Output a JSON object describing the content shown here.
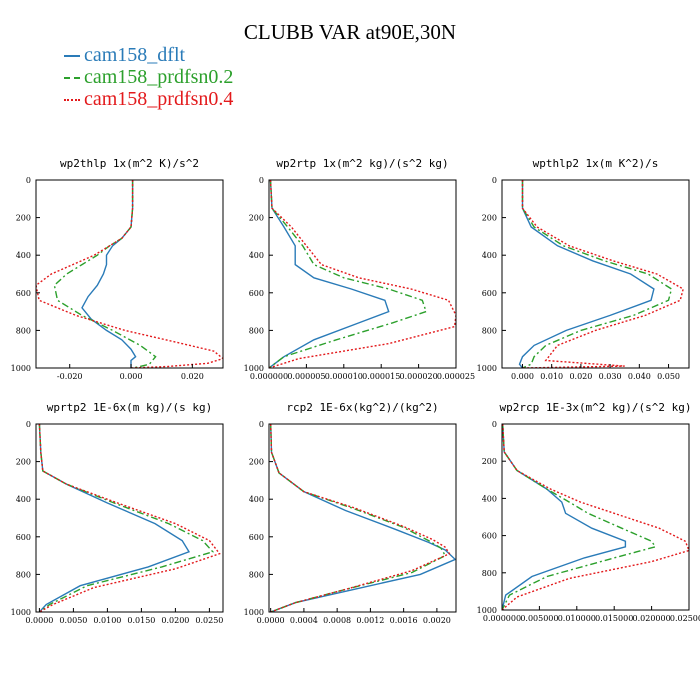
{
  "figure": {
    "title": "CLUBB VAR at90E,30N"
  },
  "legend": {
    "items": [
      {
        "label": "cam158_dflt",
        "color": "#2a7bb8",
        "dash": "solid"
      },
      {
        "label": "cam158_prdfsn0.2",
        "color": "#2ca02c",
        "dash": "dashed"
      },
      {
        "label": "cam158_prdfsn0.4",
        "color": "#e31a1c",
        "dash": "dotted"
      }
    ]
  },
  "chart_data": [
    {
      "type": "line",
      "title": "wp2thlp  1x(m^2 K)/s^2",
      "xlim": [
        -0.031,
        0.03
      ],
      "ylim": [
        1000,
        0
      ],
      "xticks": [
        -0.02,
        0,
        0.02
      ],
      "xtick_labels": [
        "-0.020",
        "0.000",
        "0.020"
      ],
      "yticks": [
        0,
        200,
        400,
        600,
        800,
        1000
      ],
      "ytick_labels": [
        "0",
        "200",
        "400",
        "600",
        "800",
        "1000"
      ],
      "series": [
        {
          "name": "cam158_dflt",
          "x": [
            0.0005,
            0.0005,
            0.0,
            -0.003,
            -0.006,
            -0.008,
            -0.008,
            -0.009,
            -0.011,
            -0.014,
            -0.016,
            -0.013,
            -0.008,
            -0.003,
            0.0,
            0.0015,
            0.0,
            0.0,
            0.0
          ],
          "y": [
            0,
            150,
            250,
            310,
            350,
            400,
            450,
            500,
            560,
            620,
            680,
            740,
            800,
            850,
            900,
            940,
            960,
            990,
            1000
          ]
        },
        {
          "name": "cam158_prdfsn0.2",
          "x": [
            0.0005,
            0.0005,
            0.0,
            -0.003,
            -0.007,
            -0.011,
            -0.016,
            -0.021,
            -0.025,
            -0.024,
            -0.016,
            -0.006,
            0.003,
            0.008,
            0.006,
            0.002,
            0.0
          ],
          "y": [
            0,
            150,
            250,
            310,
            350,
            400,
            450,
            500,
            560,
            640,
            720,
            800,
            880,
            940,
            980,
            995,
            1000
          ]
        },
        {
          "name": "cam158_prdfsn0.4",
          "x": [
            0.0005,
            0.0005,
            0.0,
            -0.003,
            -0.007,
            -0.012,
            -0.019,
            -0.026,
            -0.031,
            -0.03,
            -0.018,
            -0.002,
            0.014,
            0.027,
            0.03,
            0.025,
            0.012,
            0.0
          ],
          "y": [
            0,
            150,
            250,
            310,
            350,
            400,
            450,
            500,
            560,
            640,
            720,
            800,
            860,
            910,
            950,
            975,
            992,
            1000
          ]
        }
      ]
    },
    {
      "type": "line",
      "title": "wp2rtp  1x(m^2 kg)/(s^2 kg)",
      "xlim": [
        0,
        2.5e-05
      ],
      "ylim": [
        1000,
        0
      ],
      "xticks": [
        0,
        5e-06,
        1e-05,
        1.5e-05,
        2e-05,
        2.5e-05
      ],
      "xtick_labels": [
        "0.000000",
        "0.000005",
        "0.000010",
        "0.000015",
        "0.000020",
        "0.000025"
      ],
      "yticks": [
        0,
        200,
        400,
        600,
        800,
        1000
      ],
      "ytick_labels": [
        "0",
        "200",
        "400",
        "600",
        "800",
        "1000"
      ],
      "series": [
        {
          "name": "cam158_dflt",
          "x": [
            2e-07,
            4e-07,
            2e-06,
            3.5e-06,
            3.5e-06,
            6e-06,
            1.1e-05,
            1.55e-05,
            1.6e-05,
            1.2e-05,
            6e-06,
            2e-06,
            0
          ],
          "y": [
            0,
            150,
            250,
            350,
            450,
            520,
            580,
            640,
            700,
            760,
            850,
            940,
            1000
          ]
        },
        {
          "name": "cam158_prdfsn0.2",
          "x": [
            2e-07,
            4e-07,
            2.5e-06,
            4.5e-06,
            6e-06,
            1e-05,
            1.6e-05,
            2.05e-05,
            2.1e-05,
            1.65e-05,
            9e-06,
            2e-06,
            0
          ],
          "y": [
            0,
            150,
            250,
            350,
            450,
            520,
            580,
            640,
            700,
            760,
            850,
            940,
            1000
          ]
        },
        {
          "name": "cam158_prdfsn0.4",
          "x": [
            2e-07,
            4e-07,
            3e-06,
            5e-06,
            7e-06,
            1.2e-05,
            1.9e-05,
            2.4e-05,
            2.5e-05,
            2.48e-05,
            1.6e-05,
            4e-06,
            0
          ],
          "y": [
            0,
            150,
            250,
            350,
            450,
            520,
            580,
            640,
            720,
            780,
            870,
            950,
            1000
          ]
        }
      ]
    },
    {
      "type": "line",
      "title": "wpthlp2  1x(m K^2)/s",
      "xlim": [
        -0.007,
        0.057
      ],
      "ylim": [
        1000,
        0
      ],
      "xticks": [
        0,
        0.01,
        0.02,
        0.03,
        0.04,
        0.05
      ],
      "xtick_labels": [
        "0.000",
        "0.010",
        "0.020",
        "0.030",
        "0.040",
        "0.050"
      ],
      "yticks": [
        0,
        200,
        400,
        600,
        800,
        1000
      ],
      "ytick_labels": [
        "0",
        "200",
        "400",
        "600",
        "800",
        "1000"
      ],
      "series": [
        {
          "name": "cam158_dflt",
          "x": [
            0.0,
            0.0,
            0.003,
            0.012,
            0.024,
            0.037,
            0.045,
            0.044,
            0.03,
            0.015,
            0.004,
            0.0,
            -0.001,
            0.0
          ],
          "y": [
            0,
            150,
            250,
            350,
            430,
            500,
            580,
            640,
            720,
            800,
            880,
            940,
            980,
            1000
          ]
        },
        {
          "name": "cam158_prdfsn0.2",
          "x": [
            0.0,
            0.0,
            0.004,
            0.014,
            0.028,
            0.043,
            0.051,
            0.05,
            0.038,
            0.02,
            0.008,
            0.004,
            0.003,
            0.0
          ],
          "y": [
            0,
            150,
            250,
            350,
            430,
            500,
            580,
            640,
            720,
            800,
            880,
            940,
            980,
            1000
          ]
        },
        {
          "name": "cam158_prdfsn0.4",
          "x": [
            0.0,
            0.0,
            0.005,
            0.016,
            0.031,
            0.046,
            0.055,
            0.054,
            0.042,
            0.025,
            0.012,
            0.008,
            0.035,
            0.0
          ],
          "y": [
            0,
            150,
            250,
            350,
            430,
            500,
            580,
            640,
            720,
            800,
            880,
            960,
            990,
            1000
          ]
        }
      ]
    },
    {
      "type": "line",
      "title": "wprtp2  1E-6x(m kg)/(s kg)",
      "xlim": [
        -0.0005,
        0.027
      ],
      "ylim": [
        1000,
        0
      ],
      "xticks": [
        0,
        0.005,
        0.01,
        0.015,
        0.02,
        0.025
      ],
      "xtick_labels": [
        "0.0000",
        "0.0050",
        "0.0100",
        "0.0150",
        "0.0200",
        "0.0250"
      ],
      "yticks": [
        0,
        200,
        400,
        600,
        800,
        1000
      ],
      "ytick_labels": [
        "0",
        "200",
        "400",
        "600",
        "800",
        "1000"
      ],
      "series": [
        {
          "name": "cam158_dflt",
          "x": [
            0.0,
            0.0002,
            0.0005,
            0.004,
            0.01,
            0.017,
            0.021,
            0.022,
            0.016,
            0.006,
            0.001,
            0.0
          ],
          "y": [
            0,
            150,
            250,
            320,
            420,
            530,
            620,
            680,
            760,
            860,
            960,
            1000
          ]
        },
        {
          "name": "cam158_prdfsn0.2",
          "x": [
            0.0,
            0.0002,
            0.0005,
            0.004,
            0.011,
            0.019,
            0.024,
            0.0255,
            0.018,
            0.007,
            0.0015,
            0.0
          ],
          "y": [
            0,
            150,
            250,
            320,
            420,
            530,
            620,
            680,
            760,
            860,
            960,
            1000
          ]
        },
        {
          "name": "cam158_prdfsn0.4",
          "x": [
            0.0,
            0.0002,
            0.0005,
            0.004,
            0.0115,
            0.02,
            0.025,
            0.0265,
            0.02,
            0.008,
            0.002,
            0.0
          ],
          "y": [
            0,
            150,
            250,
            320,
            420,
            530,
            620,
            690,
            770,
            870,
            960,
            1000
          ]
        }
      ]
    },
    {
      "type": "line",
      "title": "rcp2  1E-6x(kg^2)/(kg^2)",
      "xlim": [
        -2e-05,
        0.00223
      ],
      "ylim": [
        1000,
        0
      ],
      "xticks": [
        0,
        0.0004,
        0.0008,
        0.0012,
        0.0016,
        0.002
      ],
      "xtick_labels": [
        "0.0000",
        "0.0004",
        "0.0008",
        "0.0012",
        "0.0016",
        "0.0020"
      ],
      "yticks": [
        0,
        200,
        400,
        600,
        800,
        1000
      ],
      "ytick_labels": [
        "0",
        "200",
        "400",
        "600",
        "800",
        "1000"
      ],
      "series": [
        {
          "name": "cam158_dflt",
          "x": [
            0,
            1e-05,
            0.0001,
            0.0004,
            0.0009,
            0.0015,
            0.0019,
            0.0021,
            0.00222,
            0.0018,
            0.001,
            0.0003,
            0.0
          ],
          "y": [
            0,
            150,
            260,
            360,
            460,
            560,
            630,
            670,
            720,
            800,
            880,
            950,
            1000
          ]
        },
        {
          "name": "cam158_prdfsn0.2",
          "x": [
            0,
            1e-05,
            0.0001,
            0.0004,
            0.001,
            0.0016,
            0.0019,
            0.00205,
            0.0021,
            0.0017,
            0.0009,
            0.0003,
            0.0
          ],
          "y": [
            0,
            150,
            260,
            360,
            450,
            550,
            620,
            660,
            700,
            790,
            880,
            950,
            1000
          ]
        },
        {
          "name": "cam158_prdfsn0.4",
          "x": [
            0,
            1e-05,
            0.0001,
            0.0004,
            0.001,
            0.0016,
            0.00195,
            0.0021,
            0.00215,
            0.0017,
            0.0009,
            0.0003,
            0.0
          ],
          "y": [
            0,
            150,
            260,
            360,
            445,
            545,
            615,
            655,
            690,
            780,
            880,
            950,
            1000
          ]
        }
      ]
    },
    {
      "type": "line",
      "title": "wp2rcp  1E-3x(m^2 kg)/(s^2 kg)",
      "xlim": [
        0,
        0.025
      ],
      "ylim": [
        1000,
        0
      ],
      "xticks": [
        0,
        0.005,
        0.01,
        0.015,
        0.02,
        0.025
      ],
      "xtick_labels": [
        "0.000000",
        "0.005000",
        "0.010000",
        "0.015000",
        "0.020000",
        "0.025000"
      ],
      "yticks": [
        0,
        200,
        400,
        600,
        800,
        1000
      ],
      "ytick_labels": [
        "0",
        "200",
        "400",
        "600",
        "800",
        "1000"
      ],
      "series": [
        {
          "name": "cam158_dflt",
          "x": [
            0.0001,
            0.0003,
            0.002,
            0.006,
            0.008,
            0.0085,
            0.012,
            0.0165,
            0.0165,
            0.011,
            0.004,
            0.0005,
            0.0
          ],
          "y": [
            0,
            150,
            250,
            350,
            420,
            480,
            560,
            630,
            660,
            720,
            820,
            920,
            1000
          ]
        },
        {
          "name": "cam158_prdfsn0.2",
          "x": [
            0.0001,
            0.0003,
            0.002,
            0.006,
            0.009,
            0.0115,
            0.016,
            0.02,
            0.0205,
            0.015,
            0.006,
            0.001,
            0.0
          ],
          "y": [
            0,
            150,
            250,
            350,
            420,
            480,
            560,
            630,
            660,
            720,
            820,
            920,
            1000
          ]
        },
        {
          "name": "cam158_prdfsn0.4",
          "x": [
            0.0001,
            0.0003,
            0.002,
            0.0065,
            0.0105,
            0.015,
            0.021,
            0.0245,
            0.025,
            0.02,
            0.009,
            0.002,
            0.0
          ],
          "y": [
            0,
            150,
            250,
            350,
            420,
            480,
            560,
            630,
            680,
            740,
            830,
            930,
            1000
          ]
        }
      ]
    }
  ]
}
